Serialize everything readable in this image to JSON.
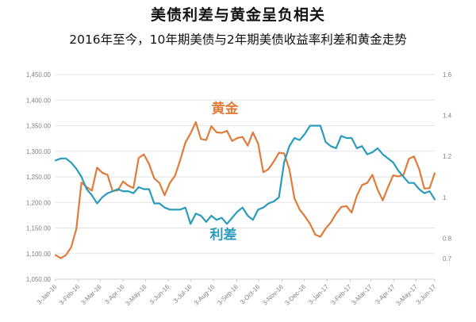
{
  "title": "美债利差与黄金呈负相关",
  "subtitle": "2016年至今，10年期美债与2年期美债收益率利差和黄金走势",
  "chart_data": {
    "type": "line",
    "title": "美债利差与黄金呈负相关",
    "subtitle": "2016年至今，10年期美债与2年期美债收益率利差和黄金走势",
    "y_left": {
      "lim": [
        1050,
        1450
      ],
      "ticks": [
        1050,
        1100,
        1150,
        1200,
        1250,
        1300,
        1350,
        1400,
        1450
      ],
      "tick_labels": [
        "1,050.00",
        "1,100.00",
        "1,150.00",
        "1,200.00",
        "1,250.00",
        "1,300.00",
        "1,350.00",
        "1,400.00",
        "1,450.00"
      ]
    },
    "y_right": {
      "lim": [
        0.6,
        1.6
      ],
      "ticks": [
        0.7,
        0.8,
        1.0,
        1.2,
        1.4,
        1.6
      ],
      "tick_labels": [
        "0.7",
        "0.8",
        "1",
        "1.2",
        "1.4",
        "1.6"
      ]
    },
    "x_range": [
      0,
      73
    ],
    "x_ticks": [
      {
        "t": 0,
        "label": "3-Jan-16"
      },
      {
        "t": 4.4,
        "label": "3-Feb-16"
      },
      {
        "t": 8.6,
        "label": "3-Mar-16"
      },
      {
        "t": 13.0,
        "label": "3-Apr-16"
      },
      {
        "t": 17.3,
        "label": "3-May-16"
      },
      {
        "t": 21.7,
        "label": "3-Jun-16"
      },
      {
        "t": 26.0,
        "label": "3-Jul-16"
      },
      {
        "t": 30.4,
        "label": "3-Aug-16"
      },
      {
        "t": 34.9,
        "label": "3-Sep-16"
      },
      {
        "t": 39.1,
        "label": "3-Oct-16"
      },
      {
        "t": 43.6,
        "label": "3-Nov-16"
      },
      {
        "t": 47.9,
        "label": "3-Dec-16"
      },
      {
        "t": 52.3,
        "label": "3-Jan-17"
      },
      {
        "t": 56.7,
        "label": "3-Feb-17"
      },
      {
        "t": 60.7,
        "label": "3-Mar-17"
      },
      {
        "t": 65.1,
        "label": "3-Apr-17"
      },
      {
        "t": 69.4,
        "label": "3-May-17"
      },
      {
        "t": 73.0,
        "label": "3-Jun-17"
      }
    ],
    "series": [
      {
        "name": "黄金",
        "axis": "left",
        "color": "#e07b39",
        "points": [
          [
            0,
            1097
          ],
          [
            1,
            1091
          ],
          [
            2,
            1097
          ],
          [
            3,
            1112
          ],
          [
            4,
            1148
          ],
          [
            5,
            1239
          ],
          [
            6,
            1230
          ],
          [
            7,
            1223
          ],
          [
            8,
            1268
          ],
          [
            9,
            1258
          ],
          [
            10,
            1254
          ],
          [
            11,
            1222
          ],
          [
            12,
            1224
          ],
          [
            13,
            1241
          ],
          [
            14,
            1233
          ],
          [
            15,
            1228
          ],
          [
            16,
            1287
          ],
          [
            17,
            1294
          ],
          [
            18,
            1275
          ],
          [
            19,
            1247
          ],
          [
            20,
            1238
          ],
          [
            21,
            1214
          ],
          [
            22,
            1238
          ],
          [
            23,
            1252
          ],
          [
            24,
            1283
          ],
          [
            25,
            1317
          ],
          [
            26,
            1335
          ],
          [
            27,
            1357
          ],
          [
            28,
            1324
          ],
          [
            29,
            1322
          ],
          [
            30,
            1349
          ],
          [
            31,
            1337
          ],
          [
            32,
            1336
          ],
          [
            33,
            1340
          ],
          [
            34,
            1320
          ],
          [
            35,
            1326
          ],
          [
            36,
            1328
          ],
          [
            37,
            1311
          ],
          [
            38,
            1337
          ],
          [
            39,
            1315
          ],
          [
            40,
            1259
          ],
          [
            41,
            1265
          ],
          [
            42,
            1280
          ],
          [
            43,
            1297
          ],
          [
            44,
            1296
          ],
          [
            45,
            1265
          ],
          [
            46,
            1208
          ],
          [
            47,
            1186
          ],
          [
            48,
            1173
          ],
          [
            49,
            1158
          ],
          [
            50,
            1137
          ],
          [
            51,
            1133
          ],
          [
            52,
            1149
          ],
          [
            53,
            1161
          ],
          [
            54,
            1178
          ],
          [
            55,
            1191
          ],
          [
            56,
            1193
          ],
          [
            57,
            1180
          ],
          [
            58,
            1213
          ],
          [
            59,
            1234
          ],
          [
            60,
            1238
          ],
          [
            61,
            1254
          ],
          [
            62,
            1225
          ],
          [
            63,
            1204
          ],
          [
            64,
            1230
          ],
          [
            65,
            1253
          ],
          [
            66,
            1251
          ],
          [
            67,
            1254
          ],
          [
            68,
            1285
          ],
          [
            69,
            1290
          ],
          [
            70,
            1265
          ],
          [
            71,
            1227
          ],
          [
            72,
            1228
          ],
          [
            73,
            1257
          ]
        ]
      },
      {
        "name": "利差",
        "axis": "right",
        "color": "#2a9bbb",
        "points": [
          [
            0,
            1.18
          ],
          [
            1,
            1.19
          ],
          [
            2,
            1.19
          ],
          [
            3,
            1.17
          ],
          [
            4,
            1.14
          ],
          [
            5,
            1.1
          ],
          [
            6,
            1.04
          ],
          [
            7,
            1.01
          ],
          [
            8,
            0.97
          ],
          [
            9,
            1.0
          ],
          [
            10,
            1.02
          ],
          [
            11,
            1.03
          ],
          [
            12,
            1.04
          ],
          [
            13,
            1.03
          ],
          [
            14,
            1.03
          ],
          [
            15,
            1.02
          ],
          [
            16,
            1.05
          ],
          [
            17,
            1.04
          ],
          [
            18,
            1.04
          ],
          [
            19,
            0.97
          ],
          [
            20,
            0.97
          ],
          [
            21,
            0.95
          ],
          [
            22,
            0.94
          ],
          [
            23,
            0.94
          ],
          [
            24,
            0.94
          ],
          [
            25,
            0.95
          ],
          [
            26,
            0.87
          ],
          [
            27,
            0.92
          ],
          [
            28,
            0.91
          ],
          [
            29,
            0.88
          ],
          [
            30,
            0.91
          ],
          [
            31,
            0.89
          ],
          [
            32,
            0.9
          ],
          [
            33,
            0.87
          ],
          [
            34,
            0.9
          ],
          [
            35,
            0.93
          ],
          [
            36,
            0.95
          ],
          [
            37,
            0.91
          ],
          [
            38,
            0.89
          ],
          [
            39,
            0.94
          ],
          [
            40,
            0.95
          ],
          [
            41,
            0.97
          ],
          [
            42,
            0.98
          ],
          [
            43,
            1.0
          ],
          [
            44,
            1.17
          ],
          [
            45,
            1.25
          ],
          [
            46,
            1.29
          ],
          [
            47,
            1.28
          ],
          [
            48,
            1.31
          ],
          [
            49,
            1.35
          ],
          [
            50,
            1.35
          ],
          [
            51,
            1.35
          ],
          [
            52,
            1.27
          ],
          [
            53,
            1.25
          ],
          [
            54,
            1.24
          ],
          [
            55,
            1.3
          ],
          [
            56,
            1.29
          ],
          [
            57,
            1.29
          ],
          [
            58,
            1.24
          ],
          [
            59,
            1.25
          ],
          [
            60,
            1.21
          ],
          [
            61,
            1.22
          ],
          [
            62,
            1.24
          ],
          [
            63,
            1.21
          ],
          [
            64,
            1.19
          ],
          [
            65,
            1.17
          ],
          [
            66,
            1.13
          ],
          [
            67,
            1.1
          ],
          [
            68,
            1.07
          ],
          [
            69,
            1.07
          ],
          [
            70,
            1.04
          ],
          [
            71,
            1.02
          ],
          [
            72,
            1.03
          ],
          [
            73,
            0.99
          ]
        ]
      }
    ],
    "annotations": [
      {
        "text": "黄金",
        "series": "黄金",
        "color": "#e07b39"
      },
      {
        "text": "利差",
        "series": "利差",
        "color": "#2a9bbb"
      }
    ],
    "grid": "horizontal"
  }
}
